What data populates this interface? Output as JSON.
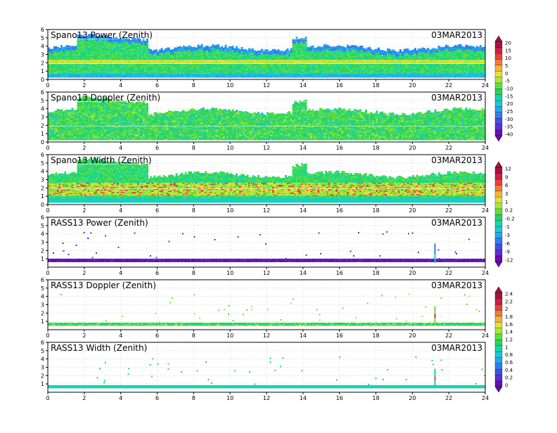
{
  "colormap": [
    "#6a0dad",
    "#5a2fd0",
    "#3f51e6",
    "#2f7df0",
    "#24a8ee",
    "#19c9d6",
    "#15d6a6",
    "#26d462",
    "#5fe040",
    "#a8e63c",
    "#e6dd3a",
    "#f1b33a",
    "#ef7b3a",
    "#e8403b",
    "#cc1f46",
    "#a81040"
  ],
  "colorbars": [
    {
      "ticks": [
        "20",
        "15",
        "10",
        "5",
        "0",
        "-5",
        "-10",
        "-15",
        "-20",
        "-25",
        "-30",
        "-35",
        "-40"
      ]
    },
    {
      "ticks": [
        "12",
        "9",
        "6",
        "3",
        "1",
        "0.2",
        "-0.2",
        "-1",
        "-3",
        "-6",
        "-9",
        "-12"
      ]
    },
    {
      "ticks": [
        "2.4",
        "2.2",
        "2",
        "1.8",
        "1.6",
        "1.4",
        "1.2",
        "1",
        "0.8",
        "0.6",
        "0.4",
        "0.2",
        "0"
      ]
    }
  ],
  "chart_data": [
    {
      "type": "heatmap",
      "title": "Spano13 Power (Zenith)",
      "date": "03MAR2013",
      "xlim": [
        0,
        24
      ],
      "ylim": [
        0,
        6
      ],
      "xticks": [
        "0",
        "2",
        "4",
        "6",
        "8",
        "10",
        "12",
        "14",
        "16",
        "18",
        "20",
        "22",
        "24"
      ],
      "yticks": [
        "0",
        "1",
        "2",
        "3",
        "4",
        "5",
        "6"
      ],
      "style": "profiler",
      "top_km": 3.8,
      "band_low": 1.2,
      "band_high": 2.9,
      "mode": "power"
    },
    {
      "type": "heatmap",
      "title": "Spano13 Doppler (Zenith)",
      "date": "03MAR2013",
      "xlim": [
        0,
        24
      ],
      "ylim": [
        0,
        6
      ],
      "xticks": [
        "0",
        "2",
        "4",
        "6",
        "8",
        "10",
        "12",
        "14",
        "16",
        "18",
        "20",
        "22",
        "24"
      ],
      "yticks": [
        "0",
        "1",
        "2",
        "3",
        "4",
        "5",
        "6"
      ],
      "style": "profiler",
      "top_km": 3.7,
      "band_low": 0.6,
      "band_high": 3.5,
      "mode": "doppler"
    },
    {
      "type": "heatmap",
      "title": "Spano13 Width (Zenith)",
      "date": "03MAR2013",
      "xlim": [
        0,
        24
      ],
      "ylim": [
        0,
        6
      ],
      "xticks": [
        "0",
        "2",
        "4",
        "6",
        "8",
        "10",
        "12",
        "14",
        "16",
        "18",
        "20",
        "22",
        "24"
      ],
      "yticks": [
        "0",
        "1",
        "2",
        "3",
        "4",
        "5",
        "6"
      ],
      "style": "profiler",
      "top_km": 3.6,
      "band_low": 1.0,
      "band_high": 2.6,
      "mode": "width"
    },
    {
      "type": "heatmap",
      "title": "RASS13 Power (Zenith)",
      "date": "03MAR2013",
      "xlim": [
        0,
        24
      ],
      "ylim": [
        0,
        6
      ],
      "xticks": [
        "0",
        "2",
        "4",
        "6",
        "8",
        "10",
        "12",
        "14",
        "16",
        "18",
        "20",
        "22",
        "24"
      ],
      "yticks": [
        "1",
        "2",
        "3",
        "4",
        "5",
        "6"
      ],
      "style": "rass",
      "band_km": 0.75,
      "mode": "rasspower"
    },
    {
      "type": "heatmap",
      "title": "RASS13 Doppler (Zenith)",
      "date": "03MAR2013",
      "xlim": [
        0,
        24
      ],
      "ylim": [
        0,
        6
      ],
      "xticks": [
        "0",
        "2",
        "4",
        "6",
        "8",
        "10",
        "12",
        "14",
        "16",
        "18",
        "20",
        "22",
        "24"
      ],
      "yticks": [
        "1",
        "2",
        "3",
        "4",
        "5",
        "6"
      ],
      "style": "rass",
      "band_km": 0.6,
      "mode": "rassdoppler"
    },
    {
      "type": "heatmap",
      "title": "RASS13 Width (Zenith)",
      "date": "03MAR2013",
      "xlim": [
        0,
        24
      ],
      "ylim": [
        0,
        6
      ],
      "xticks": [
        "0",
        "2",
        "4",
        "6",
        "8",
        "10",
        "12",
        "14",
        "16",
        "18",
        "20",
        "22",
        "24"
      ],
      "yticks": [
        "1",
        "2",
        "3",
        "4",
        "5",
        "6"
      ],
      "style": "rass",
      "band_km": 0.6,
      "mode": "rasswidth"
    }
  ]
}
